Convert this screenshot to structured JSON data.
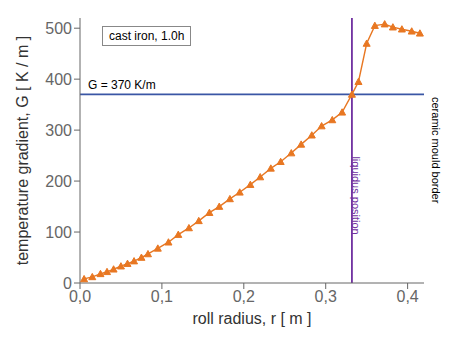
{
  "chart_data": {
    "type": "line",
    "title": "cast iron, 1.0h",
    "xlabel": "roll radius, r  [ m ]",
    "ylabel": "temperature gradient, G  [ K / m ]",
    "xlim": [
      0.0,
      0.42
    ],
    "ylim": [
      0,
      520
    ],
    "xticks": [
      {
        "value": 0.0,
        "label": "0,0"
      },
      {
        "value": 0.1,
        "label": "0,1"
      },
      {
        "value": 0.2,
        "label": "0,2"
      },
      {
        "value": 0.3,
        "label": "0,3"
      },
      {
        "value": 0.4,
        "label": "0,4"
      }
    ],
    "yticks": [
      0,
      100,
      200,
      300,
      400,
      500
    ],
    "grid": false,
    "x": [
      0.005,
      0.015,
      0.025,
      0.033,
      0.041,
      0.05,
      0.058,
      0.066,
      0.075,
      0.083,
      0.095,
      0.108,
      0.12,
      0.133,
      0.145,
      0.158,
      0.17,
      0.183,
      0.195,
      0.208,
      0.22,
      0.233,
      0.245,
      0.258,
      0.27,
      0.283,
      0.295,
      0.308,
      0.32,
      0.332,
      0.34,
      0.35,
      0.36,
      0.372,
      0.382,
      0.393,
      0.405,
      0.415
    ],
    "values": [
      8,
      12,
      18,
      22,
      27,
      33,
      38,
      43,
      50,
      57,
      68,
      80,
      95,
      108,
      122,
      138,
      150,
      165,
      178,
      193,
      208,
      225,
      238,
      255,
      272,
      290,
      308,
      320,
      335,
      370,
      395,
      470,
      505,
      508,
      502,
      498,
      494,
      490
    ],
    "color": "#e87722",
    "marker": "triangle",
    "reference_lines": [
      {
        "axis": "y",
        "value": 370,
        "label": "G = 370 K/m",
        "color": "#3a56a5"
      },
      {
        "axis": "x",
        "value": 0.332,
        "label": "liquidus position",
        "color": "#7030a0"
      }
    ],
    "annotations": [
      "ceramic mould border"
    ]
  }
}
